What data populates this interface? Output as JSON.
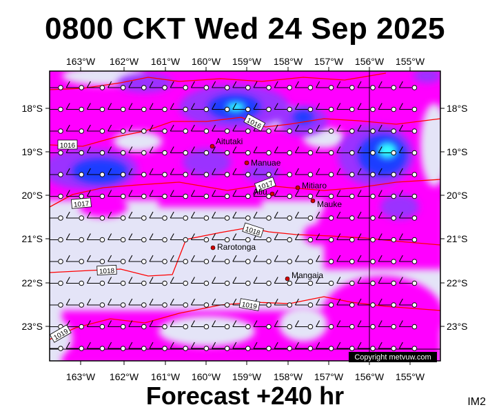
{
  "title": "0800 CKT Wed 24 Sep 2025",
  "subtitle": "Forecast +240 hr",
  "image_code": "IM2",
  "copyright": "Copyright metvuw.com",
  "map": {
    "lon_ticks": [
      "163°W",
      "162°W",
      "161°W",
      "160°W",
      "159°W",
      "158°W",
      "157°W",
      "156°W",
      "155°W"
    ],
    "lat_ticks": [
      "18°S",
      "19°S",
      "20°S",
      "21°S",
      "22°S",
      "23°S"
    ],
    "places": [
      {
        "name": "Aitutaki",
        "lon": -159.78,
        "lat": -18.86
      },
      {
        "name": "Manuae",
        "lon": -158.96,
        "lat": -19.27
      },
      {
        "name": "Mitiaro",
        "lon": -157.71,
        "lat": -19.87
      },
      {
        "name": "Atiu",
        "lon": -158.12,
        "lat": -19.99
      },
      {
        "name": "Mauke",
        "lon": -157.34,
        "lat": -20.15
      },
      {
        "name": "Rarotonga",
        "lon": -159.78,
        "lat": -21.23
      },
      {
        "name": "Mangaia",
        "lon": -157.92,
        "lat": -21.92
      }
    ],
    "isobar_labels": [
      "1016",
      "1016",
      "1017",
      "1017",
      "1018",
      "1018",
      "1019",
      "1019"
    ],
    "colors": {
      "background": "#e4e4f7",
      "rain_light": "#ff00ff",
      "rain_mid": "#9b33ff",
      "rain_heavy": "#1e3cff",
      "rain_peak": "#33ffff",
      "isobar": "#ff0000",
      "town": "#d40000"
    }
  }
}
